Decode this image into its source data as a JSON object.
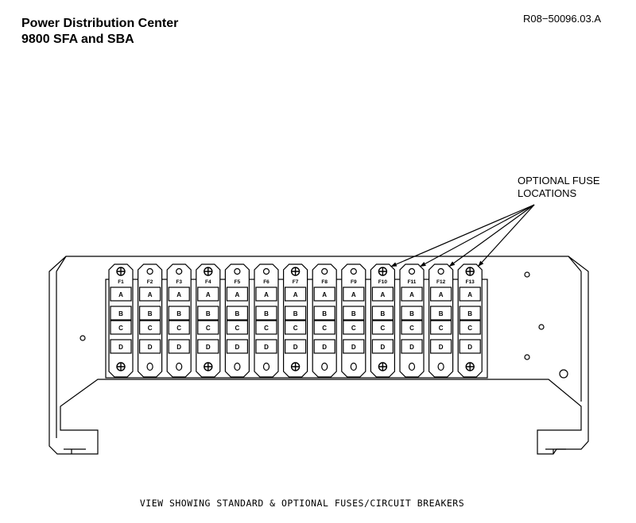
{
  "header": {
    "title_line1": "Power Distribution Center",
    "title_line2": "9800 SFA and SBA",
    "doc_number": "R08−50096.03.A"
  },
  "callout": {
    "line1": "OPTIONAL FUSE",
    "line2": "LOCATIONS"
  },
  "caption": "VIEW SHOWING STANDARD & OPTIONAL FUSES/CIRCUIT BREAKERS",
  "fuse_blocks": [
    {
      "label": "F1",
      "standard": true
    },
    {
      "label": "F2",
      "standard": false
    },
    {
      "label": "F3",
      "standard": false
    },
    {
      "label": "F4",
      "standard": true
    },
    {
      "label": "F5",
      "standard": false
    },
    {
      "label": "F6",
      "standard": false
    },
    {
      "label": "F7",
      "standard": true
    },
    {
      "label": "F8",
      "standard": false
    },
    {
      "label": "F9",
      "standard": false
    },
    {
      "label": "F10",
      "standard": true
    },
    {
      "label": "F11",
      "standard": false
    },
    {
      "label": "F12",
      "standard": false
    },
    {
      "label": "F13",
      "standard": true
    }
  ],
  "row_labels": [
    "A",
    "B",
    "C",
    "D"
  ]
}
